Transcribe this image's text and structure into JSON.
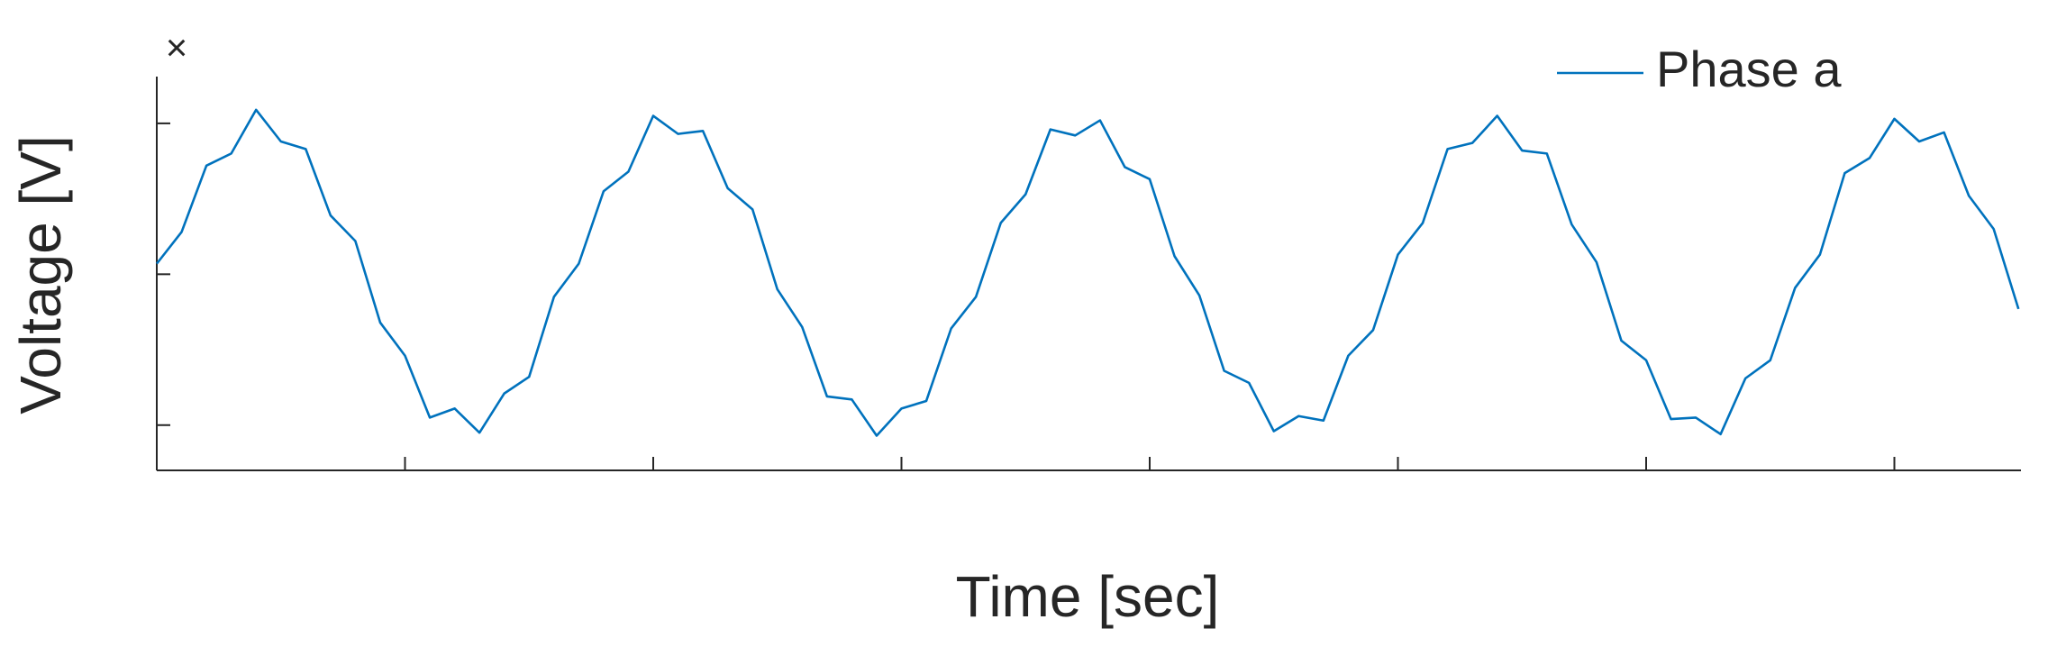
{
  "chart_data": {
    "type": "line",
    "corner_label": "×",
    "x_label": "Time [sec]",
    "y_label": "Voltage [V]",
    "x": [
      0,
      0.1,
      0.2,
      0.3,
      0.4,
      0.5,
      0.6,
      0.7,
      0.8,
      0.9,
      1,
      1.1,
      1.2,
      1.3,
      1.4,
      1.5,
      1.6,
      1.7,
      1.8,
      1.9,
      2,
      2.1,
      2.2,
      2.3,
      2.4,
      2.5,
      2.6,
      2.7,
      2.8,
      2.9,
      3,
      3.1,
      3.2,
      3.3,
      3.4,
      3.5,
      3.6,
      3.7,
      3.8,
      3.9,
      4,
      4.1,
      4.2,
      4.3,
      4.4,
      4.5,
      4.6,
      4.7,
      4.8,
      4.9,
      5,
      5.1,
      5.2,
      5.3,
      5.4,
      5.5,
      5.6,
      5.7,
      5.8,
      5.9,
      6,
      6.1,
      6.2,
      6.3,
      6.4,
      6.5,
      6.6,
      6.7,
      6.8,
      6.9,
      7,
      7.1,
      7.2,
      7.3,
      7.4,
      7.5
    ],
    "series": [
      {
        "name": "Phase a",
        "color": "#0072bd",
        "values": [
          0.07,
          0.28,
          0.72,
          0.8,
          1.09,
          0.88,
          0.83,
          0.39,
          0.22,
          -0.32,
          -0.54,
          -0.95,
          -0.89,
          -1.05,
          -0.79,
          -0.68,
          -0.15,
          0.07,
          0.55,
          0.68,
          1.05,
          0.93,
          0.95,
          0.57,
          0.43,
          -0.1,
          -0.35,
          -0.81,
          -0.83,
          -1.07,
          -0.89,
          -0.84,
          -0.36,
          -0.15,
          0.34,
          0.53,
          0.96,
          0.92,
          1.02,
          0.71,
          0.63,
          0.12,
          -0.14,
          -0.64,
          -0.72,
          -1.04,
          -0.94,
          -0.97,
          -0.54,
          -0.37,
          0.13,
          0.34,
          0.83,
          0.87,
          1.05,
          0.82,
          0.8,
          0.33,
          0.08,
          -0.44,
          -0.57,
          -0.96,
          -0.95,
          -1.06,
          -0.69,
          -0.57,
          -0.09,
          0.13,
          0.67,
          0.77,
          1.03,
          0.88,
          0.94,
          0.52,
          0.3,
          -0.23
        ]
      }
    ],
    "xlim": [
      0,
      7.51
    ],
    "ylim": [
      -1.3,
      1.31
    ],
    "xticks": [
      1,
      2,
      3,
      4,
      5,
      6,
      7
    ],
    "yticks": [
      -1,
      0,
      1
    ],
    "grid": false,
    "legend": "upper right"
  }
}
